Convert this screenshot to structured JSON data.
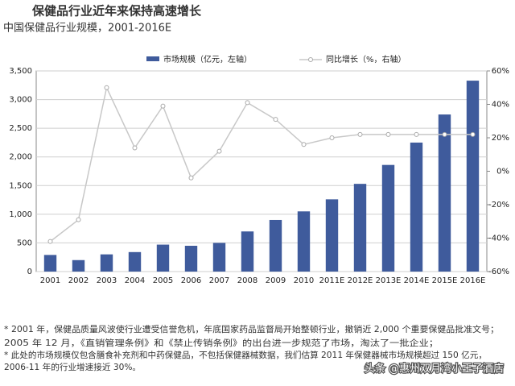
{
  "chart_data": {
    "type": "bar-line",
    "title": "保健品行业近年来保持高速增长",
    "subtitle": "中国保健品行业规模，2001-2016E",
    "categories": [
      "2001",
      "2002",
      "2003",
      "2004",
      "2005",
      "2006",
      "2007",
      "2008",
      "2009",
      "2010",
      "2011E",
      "2012E",
      "2013E",
      "2014E",
      "2015E",
      "2016E"
    ],
    "series": [
      {
        "name": "市场规模（亿元，左轴）",
        "color": "#3f5b9c",
        "values": [
          290,
          200,
          300,
          340,
          470,
          450,
          500,
          700,
          900,
          1050,
          1260,
          1530,
          1860,
          2250,
          2740,
          3330
        ]
      },
      {
        "name": "同比增长（%，右轴）",
        "color": "#c8c8c8",
        "axis": "y2",
        "values": [
          -42,
          -29,
          50,
          14,
          39,
          -4,
          12,
          41,
          31,
          16,
          20,
          22,
          22,
          22,
          22,
          22
        ]
      }
    ],
    "ylim": [
      0,
      3500
    ],
    "yticks": [
      0,
      500,
      {
        "value": 1000,
        "label": "1,000"
      },
      {
        "value": 1500,
        "label": "1,500"
      },
      {
        "value": 2000,
        "label": "2,000"
      },
      {
        "value": 2500,
        "label": "2,500"
      },
      {
        "value": 3000,
        "label": "3,000"
      },
      {
        "value": 3500,
        "label": "3,500"
      }
    ],
    "y2lim": [
      -60,
      60
    ],
    "y2ticks": [
      {
        "value": -60,
        "label": "-60%"
      },
      {
        "value": -40,
        "label": "-40%"
      },
      {
        "value": -20,
        "label": "-20%"
      },
      {
        "value": 0,
        "label": "0%"
      },
      {
        "value": 20,
        "label": "20%"
      },
      {
        "value": 40,
        "label": "40%"
      },
      {
        "value": 60,
        "label": "60%"
      }
    ],
    "grid": true,
    "legend": "top",
    "footnotes": [
      "* 2001 年，保健品质量风波使行业遭受信誉危机，年底国家药品监督局开始整顿行业，撤销近 2,000 个重要保健品批准文号；",
      "2005 年 12 月，《直销管理条例》和《禁止传销条例》的出台进一步规范了市场，淘汰了一批企业；",
      "* 此处的市场规模仅包含膳食补充剂和中药保健品，不包括保健器械数据，我们估算 2011 年保健器械市场规模超过 150 亿元，",
      "2006-11 年的行业增速接近 30%。"
    ],
    "watermark": "头条 @惠州双月湾小王子酒店"
  }
}
